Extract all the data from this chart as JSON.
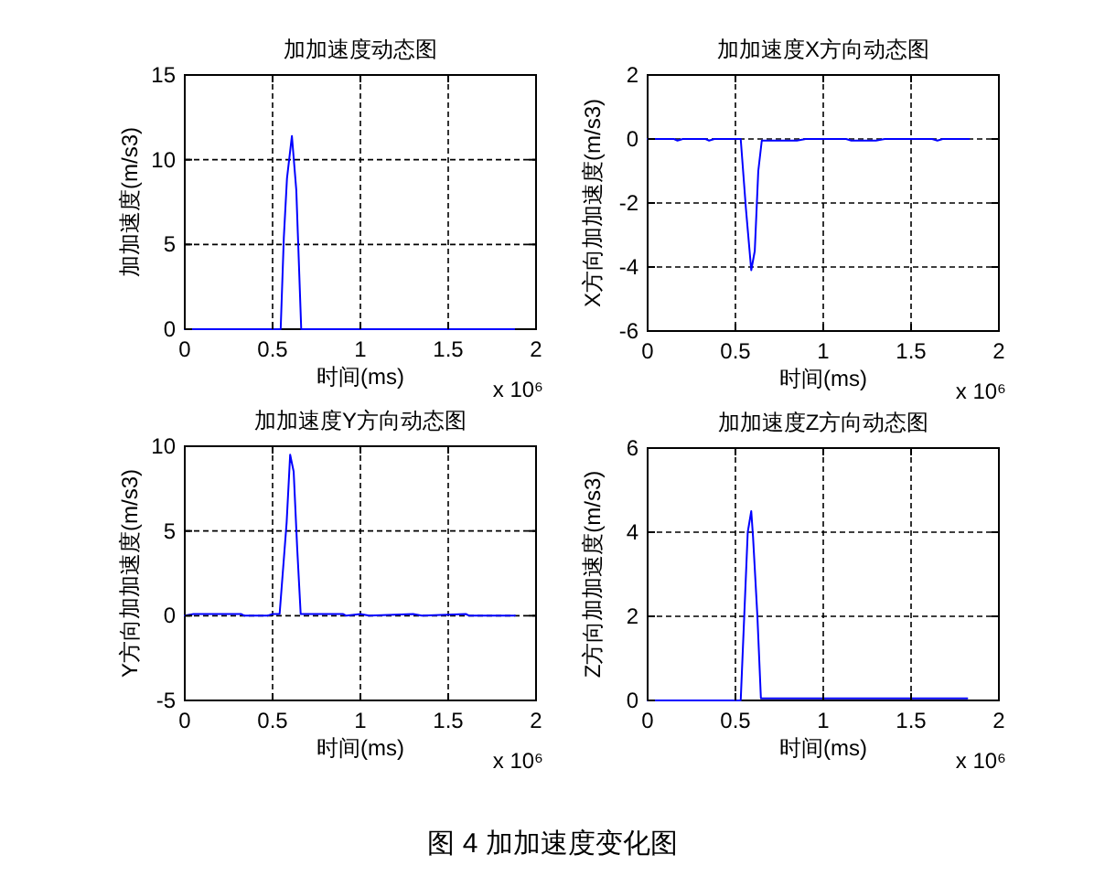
{
  "chart_data": [
    {
      "type": "line",
      "title": "加加速度动态图",
      "xlabel": "时间(ms)",
      "ylabel": "加加速度(m/s3)",
      "annotations": [
        "x 10⁶"
      ],
      "xlim": [
        0,
        2
      ],
      "xticks": [
        0,
        0.5,
        1,
        1.5,
        2
      ],
      "ylim": [
        0,
        15
      ],
      "yticks": [
        0,
        5,
        10,
        15
      ],
      "grid": true,
      "series": [
        {
          "color": "#0000ff",
          "x": [
            0,
            0.546,
            0.564,
            0.582,
            0.61,
            0.635,
            0.663,
            1.876
          ],
          "values": [
            0,
            0,
            5.4,
            8.9,
            11.4,
            8.2,
            0,
            0
          ]
        }
      ]
    },
    {
      "type": "line",
      "title": "加加速度X方向动态图",
      "xlabel": "时间(ms)",
      "ylabel": "X方向加加速度(m/s3)",
      "annotations": [
        "x 10⁶"
      ],
      "xlim": [
        0,
        2
      ],
      "xticks": [
        0,
        0.5,
        1,
        1.5,
        2
      ],
      "ylim": [
        -6,
        2
      ],
      "yticks": [
        -6,
        -4,
        -2,
        0,
        2
      ],
      "grid": true,
      "series": [
        {
          "color": "#0000ff",
          "x": [
            0,
            0.15,
            0.17,
            0.2,
            0.33,
            0.35,
            0.38,
            0.53,
            0.56,
            0.59,
            0.61,
            0.63,
            0.65,
            0.7,
            0.85,
            0.9,
            1.13,
            1.16,
            1.25,
            1.3,
            1.35,
            1.62,
            1.65,
            1.68,
            1.83
          ],
          "values": [
            0,
            0,
            -0.05,
            0,
            0,
            -0.05,
            0,
            0,
            -2.2,
            -4.1,
            -3.5,
            -1.0,
            -0.05,
            -0.05,
            -0.05,
            0,
            0,
            -0.05,
            -0.05,
            -0.05,
            0,
            0,
            -0.05,
            0,
            0
          ]
        }
      ]
    },
    {
      "type": "line",
      "title": "加加速度Y方向动态图",
      "xlabel": "时间(ms)",
      "ylabel": "Y方向加加速度(m/s3)",
      "annotations": [
        "x 10⁶"
      ],
      "xlim": [
        0,
        2
      ],
      "xticks": [
        0,
        0.5,
        1,
        1.5,
        2
      ],
      "ylim": [
        -5,
        10
      ],
      "yticks": [
        -5,
        0,
        5,
        10
      ],
      "grid": true,
      "series": [
        {
          "color": "#0000ff",
          "x": [
            0,
            0.05,
            0.32,
            0.34,
            0.47,
            0.5,
            0.54,
            0.58,
            0.6,
            0.62,
            0.64,
            0.66,
            0.9,
            0.92,
            1.0,
            1.05,
            1.3,
            1.35,
            1.6,
            1.62,
            1.88
          ],
          "values": [
            0,
            0.1,
            0.1,
            0,
            0,
            0.1,
            0.1,
            5.5,
            9.5,
            8.5,
            4,
            0.1,
            0.1,
            0,
            0.1,
            0,
            0.1,
            0,
            0.1,
            0,
            0
          ]
        }
      ]
    },
    {
      "type": "line",
      "title": "加加速度Z方向动态图",
      "xlabel": "时间(ms)",
      "ylabel": "Z方向加加速度(m/s3)",
      "annotations": [
        "x 10⁶"
      ],
      "xlim": [
        0,
        2
      ],
      "xticks": [
        0,
        0.5,
        1,
        1.5,
        2
      ],
      "ylim": [
        0,
        6
      ],
      "yticks": [
        0,
        2,
        4,
        6
      ],
      "grid": true,
      "series": [
        {
          "color": "#0000ff",
          "x": [
            0,
            0.53,
            0.57,
            0.59,
            0.6,
            0.625,
            0.645,
            1.82
          ],
          "values": [
            0,
            0,
            4.0,
            4.5,
            3.9,
            2,
            0.05,
            0.05
          ]
        }
      ]
    },
    {
      "type": "other",
      "title": "图 4 加加速度变化图"
    }
  ]
}
